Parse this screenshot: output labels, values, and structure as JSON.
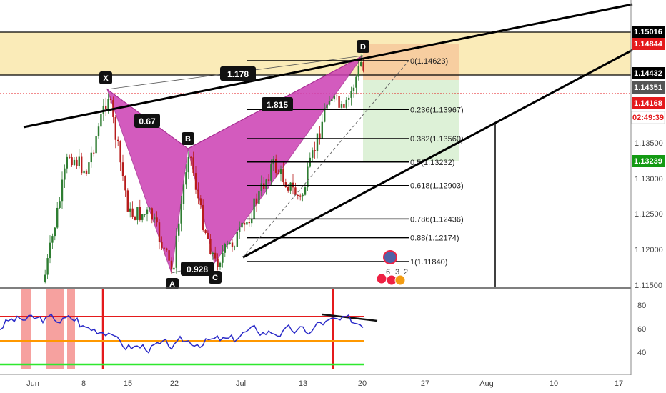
{
  "chart_data": {
    "type": "candlestick",
    "main_pane": {
      "price_axis_ticks": [
        "1.13500",
        "1.13000",
        "1.12500",
        "1.12000",
        "1.11500"
      ],
      "price_badges": [
        {
          "label": "1.15016",
          "bg": "#000000",
          "fg": "#ffffff"
        },
        {
          "label": "1.14844",
          "bg": "#e41a1c",
          "fg": "#ffffff"
        },
        {
          "label": "1.14432",
          "bg": "#000000",
          "fg": "#ffffff"
        },
        {
          "label": "1.14351",
          "bg": "#555555",
          "fg": "#ffffff"
        },
        {
          "label": "1.14168",
          "bg": "#e41a1c",
          "fg": "#ffffff"
        },
        {
          "label": "02:49:39",
          "bg": "#ffffff",
          "fg": "#e41a1c"
        },
        {
          "label": "1.13239",
          "bg": "#139a13",
          "fg": "#ffffff"
        }
      ],
      "pattern_points": [
        "X",
        "A",
        "B",
        "C",
        "D"
      ],
      "pattern_ratios": [
        "0.67",
        "0.928",
        "1.178",
        "1.815"
      ],
      "fib_levels": [
        {
          "label": "0(1.14623)",
          "value": 1.14623
        },
        {
          "label": "0.236(1.13967)",
          "value": 1.13967
        },
        {
          "label": "0.382(1.13560)",
          "value": 1.1356
        },
        {
          "label": "0.5(1.13232)",
          "value": 1.13232
        },
        {
          "label": "0.618(1.12903)",
          "value": 1.12903
        },
        {
          "label": "0.786(1.12436)",
          "value": 1.12436
        },
        {
          "label": "0.88(1.12174)",
          "value": 1.12174
        },
        {
          "label": "1(1.11840)",
          "value": 1.1184
        }
      ],
      "supply_zone": {
        "top": 1.15016,
        "bottom": 1.14432
      },
      "colors": {
        "pattern": "#cc3fb3",
        "supply_zone": "#f8e4a0",
        "loss_zone": "#f6c79a",
        "profit_zone": "#d9f0d3",
        "bull": "#2e7d32",
        "bear": "#b71c1c"
      }
    },
    "rsi_pane": {
      "axis_ticks": [
        "80",
        "60",
        "40"
      ],
      "levels": {
        "overbought": 70,
        "mid": 50,
        "oversold": 30
      },
      "colors": {
        "rsi": "#2a2ac8",
        "overbought": "#e41a1c",
        "mid": "#ff9800",
        "oversold": "#2ee82e"
      }
    },
    "x_axis": {
      "ticks": [
        "Jun",
        "8",
        "15",
        "22",
        "Jul",
        "13",
        "20",
        "27",
        "Aug",
        "10",
        "17"
      ]
    },
    "event_icons": {
      "counts": [
        "6",
        "3",
        "2"
      ]
    }
  }
}
